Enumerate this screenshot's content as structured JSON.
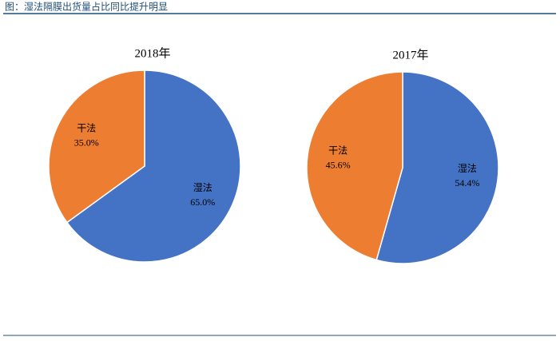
{
  "header": {
    "title": "图：湿法隔膜出货量占比同比提升明显"
  },
  "chart_data": [
    {
      "type": "pie",
      "title": "2018年",
      "categories": [
        "干法",
        "湿法"
      ],
      "values": [
        35.0,
        65.0
      ],
      "value_labels": [
        "35.0%",
        "65.0%"
      ],
      "colors": [
        "#ed7d31",
        "#4472c4"
      ]
    },
    {
      "type": "pie",
      "title": "2017年",
      "categories": [
        "干法",
        "湿法"
      ],
      "values": [
        45.6,
        54.4
      ],
      "value_labels": [
        "45.6%",
        "54.4%"
      ],
      "colors": [
        "#ed7d31",
        "#4472c4"
      ]
    }
  ]
}
